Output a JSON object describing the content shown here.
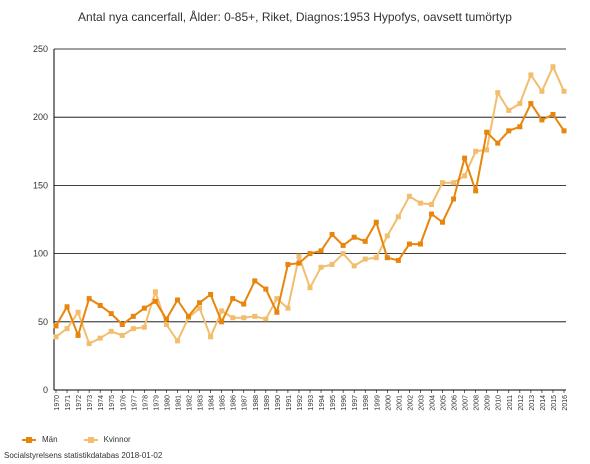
{
  "colors": {
    "men": "#e8850c",
    "women": "#f2be6e",
    "grid": "#000000",
    "axis": "#000000"
  },
  "legend": {
    "men_label": "Män",
    "women_label": "Kvinnor"
  },
  "source": "Socialstyrelsens statistikdatabas 2018-01-02",
  "chart_data": {
    "type": "line",
    "title": "Antal nya cancerfall, Ålder: 0-85+, Riket, Diagnos:1953 Hypofys, oavsett tumörtyp",
    "ylim": [
      0,
      250
    ],
    "yticks": [
      0,
      50,
      100,
      150,
      200,
      250
    ],
    "grid": true,
    "legend_position": "bottom-left",
    "x": [
      "1970",
      "1971",
      "1972",
      "1973",
      "1974",
      "1975",
      "1976",
      "1977",
      "1978",
      "1979",
      "1980",
      "1981",
      "1982",
      "1983",
      "1984",
      "1985",
      "1986",
      "1987",
      "1988",
      "1989",
      "1990",
      "1991",
      "1992",
      "1993",
      "1994",
      "1995",
      "1996",
      "1997",
      "1998",
      "1999",
      "2000",
      "2001",
      "2002",
      "2003",
      "2004",
      "2005",
      "2006",
      "2007",
      "2008",
      "2009",
      "2010",
      "2011",
      "2012",
      "2013",
      "2014",
      "2015",
      "2016"
    ],
    "series": [
      {
        "name": "Män",
        "values": [
          47,
          61,
          40,
          67,
          62,
          56,
          48,
          54,
          60,
          65,
          52,
          66,
          54,
          64,
          70,
          50,
          67,
          63,
          80,
          74,
          57,
          92,
          93,
          100,
          102,
          114,
          106,
          112,
          109,
          123,
          97,
          95,
          107,
          107,
          129,
          123,
          140,
          170,
          146,
          189,
          181,
          190,
          193,
          210,
          198,
          202,
          190
        ]
      },
      {
        "name": "Kvinnor",
        "values": [
          39,
          45,
          57,
          34,
          38,
          43,
          40,
          45,
          46,
          72,
          48,
          36,
          53,
          60,
          39,
          58,
          53,
          53,
          54,
          52,
          67,
          60,
          98,
          75,
          90,
          92,
          100,
          91,
          96,
          97,
          113,
          127,
          142,
          137,
          136,
          152,
          152,
          157,
          175,
          176,
          218,
          205,
          210,
          231,
          219,
          237,
          219
        ]
      }
    ]
  }
}
